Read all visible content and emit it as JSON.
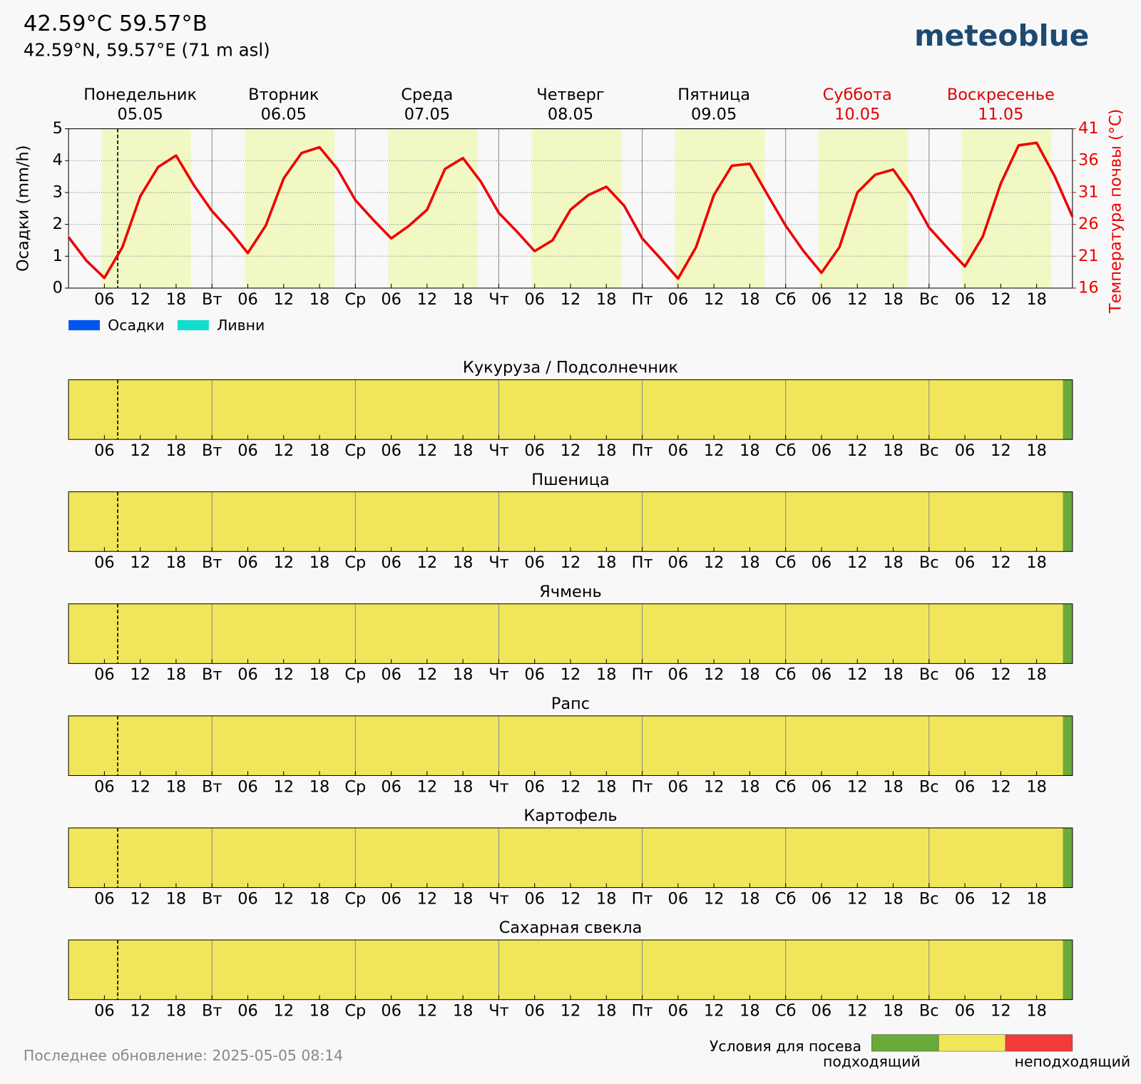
{
  "header": {
    "title": "42.59°C 59.57°В",
    "subtitle": "42.59°N, 59.57°E (71 m asl)",
    "logo": "meteoblue"
  },
  "footer": "Последнее обновление: 2025-05-05 08:14",
  "chart_data": {
    "type": "line",
    "ylabel": "Осадки (mm/h)",
    "y2label": "Температура почвы (°C)",
    "days": [
      {
        "name": "Понедельник",
        "date": "05.05",
        "color": "#000000"
      },
      {
        "name": "Вторник",
        "date": "06.05",
        "color": "#000000"
      },
      {
        "name": "Среда",
        "date": "07.05",
        "color": "#000000"
      },
      {
        "name": "Четверг",
        "date": "08.05",
        "color": "#000000"
      },
      {
        "name": "Пятница",
        "date": "09.05",
        "color": "#000000"
      },
      {
        "name": "Суббота",
        "date": "10.05",
        "color": "#dd0000"
      },
      {
        "name": "Воскресенье",
        "date": "11.05",
        "color": "#dd0000"
      }
    ],
    "legend": [
      {
        "name": "Осадки",
        "color": "#0055ee"
      },
      {
        "name": "Ливни",
        "color": "#11ddcc"
      }
    ],
    "daylight": [
      5.5,
      20.5
    ],
    "daylight_color": "#f1f8c4",
    "now": 8.23,
    "x": [
      0,
      3,
      6,
      9,
      12,
      15,
      18,
      21,
      24,
      27,
      30,
      33,
      36,
      39,
      42,
      45,
      48,
      51,
      54,
      57,
      60,
      63,
      66,
      69,
      72,
      75,
      78,
      81,
      84,
      87,
      90,
      93,
      96,
      99,
      102,
      105,
      108,
      111,
      114,
      117,
      120,
      123,
      126,
      129,
      132,
      135,
      138,
      141,
      144,
      147,
      150,
      153,
      156,
      159,
      162,
      165,
      168
    ],
    "series": [
      {
        "color": "#ee0000",
        "axis": "y2",
        "values": [
          24.0,
          20.3,
          17.6,
          22.4,
          30.4,
          35.0,
          36.8,
          32.1,
          28.1,
          25.0,
          21.5,
          25.8,
          33.2,
          37.2,
          38.1,
          34.7,
          29.8,
          26.7,
          23.8,
          25.8,
          28.3,
          34.7,
          36.4,
          32.7,
          27.8,
          24.9,
          21.8,
          23.5,
          28.3,
          30.6,
          31.9,
          28.9,
          23.8,
          20.7,
          17.5,
          22.4,
          30.6,
          35.2,
          35.5,
          30.6,
          25.8,
          21.8,
          18.4,
          22.4,
          31.0,
          33.8,
          34.6,
          30.6,
          25.5,
          22.4,
          19.4,
          24.1,
          32.4,
          38.4,
          38.8,
          33.6,
          27.2
        ]
      }
    ],
    "xlim": [
      0,
      168
    ],
    "xticks": [
      {
        "value": 6,
        "label": "06"
      },
      12,
      18,
      {
        "value": 24,
        "label": "Вт"
      },
      {
        "value": 30,
        "label": "06"
      },
      {
        "value": 36,
        "label": "12"
      },
      {
        "value": 42,
        "label": "18"
      },
      {
        "value": 48,
        "label": "Ср"
      },
      {
        "value": 54,
        "label": "06"
      },
      {
        "value": 60,
        "label": "12"
      },
      {
        "value": 66,
        "label": "18"
      },
      {
        "value": 72,
        "label": "Чт"
      },
      {
        "value": 78,
        "label": "06"
      },
      {
        "value": 84,
        "label": "12"
      },
      {
        "value": 90,
        "label": "18"
      },
      {
        "value": 96,
        "label": "Пт"
      },
      {
        "value": 102,
        "label": "06"
      },
      {
        "value": 108,
        "label": "12"
      },
      {
        "value": 114,
        "label": "18"
      },
      {
        "value": 120,
        "label": "Сб"
      },
      {
        "value": 126,
        "label": "06"
      },
      {
        "value": 132,
        "label": "12"
      },
      {
        "value": 138,
        "label": "18"
      },
      {
        "value": 144,
        "label": "Вс"
      },
      {
        "value": 150,
        "label": "06"
      },
      {
        "value": 156,
        "label": "12"
      },
      {
        "value": 162,
        "label": "18"
      }
    ],
    "ylim": [
      0,
      5
    ],
    "yticks": [
      0,
      1,
      2,
      3,
      4,
      5
    ],
    "y2lim": [
      16,
      41
    ],
    "y2ticks": [
      16,
      21,
      26,
      31,
      36,
      41
    ],
    "y2color": "#ee0000",
    "grid": true
  },
  "crops": [
    {
      "type": "timeline",
      "title": "Кукуруза / Подсолнечник",
      "segments": [
        {
          "start": 0,
          "end": 166.4,
          "color": "#f1e65a"
        },
        {
          "start": 166.4,
          "end": 168,
          "color": "#6aaa3a"
        }
      ]
    },
    {
      "type": "timeline",
      "title": "Пшеница",
      "segments": [
        {
          "start": 0,
          "end": 166.4,
          "color": "#f1e65a"
        },
        {
          "start": 166.4,
          "end": 168,
          "color": "#6aaa3a"
        }
      ]
    },
    {
      "type": "timeline",
      "title": "Ячмень",
      "segments": [
        {
          "start": 0,
          "end": 166.4,
          "color": "#f1e65a"
        },
        {
          "start": 166.4,
          "end": 168,
          "color": "#6aaa3a"
        }
      ]
    },
    {
      "type": "timeline",
      "title": "Рапс",
      "segments": [
        {
          "start": 0,
          "end": 166.4,
          "color": "#f1e65a"
        },
        {
          "start": 166.4,
          "end": 168,
          "color": "#6aaa3a"
        }
      ]
    },
    {
      "type": "timeline",
      "title": "Картофель",
      "segments": [
        {
          "start": 0,
          "end": 166.4,
          "color": "#f1e65a"
        },
        {
          "start": 166.4,
          "end": 168,
          "color": "#6aaa3a"
        }
      ]
    },
    {
      "type": "timeline",
      "title": "Сахарная свекла",
      "segments": [
        {
          "start": 0,
          "end": 166.4,
          "color": "#f1e65a"
        },
        {
          "start": 166.4,
          "end": 168,
          "color": "#6aaa3a"
        }
      ]
    }
  ],
  "sowing_legend": {
    "title": "Условия для посева",
    "colors": [
      "#6aaa3a",
      "#f1e65a",
      "#f43a3a"
    ],
    "labels": [
      "подходящий",
      "неподходящий"
    ]
  }
}
